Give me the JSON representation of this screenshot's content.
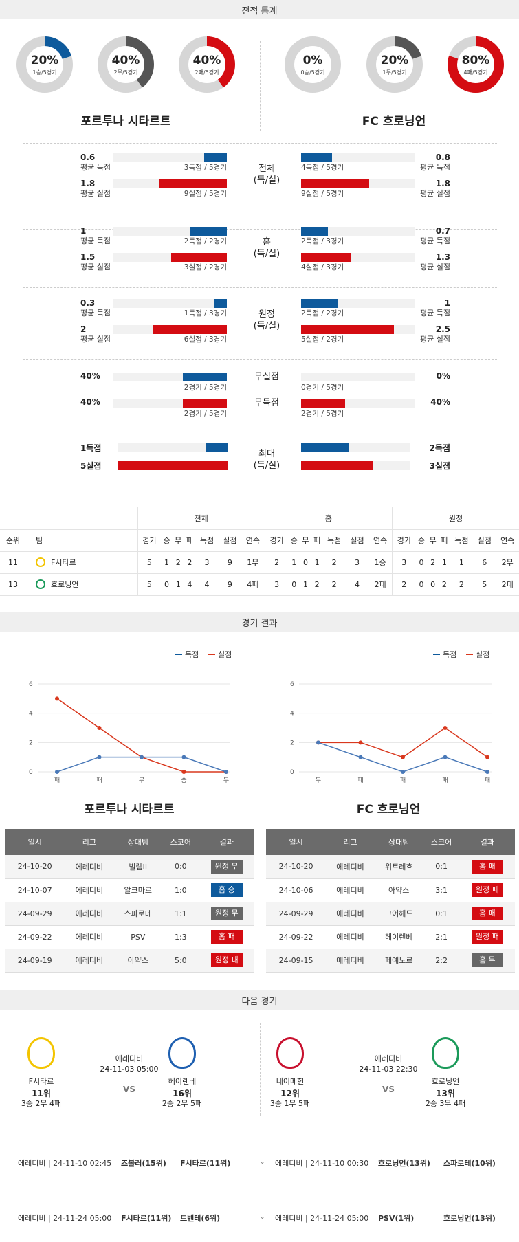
{
  "sections": {
    "stats": "전적 통계",
    "results": "경기 결과",
    "next": "다음 경기"
  },
  "teams": {
    "home": "포르투나 시타르트",
    "away": "FC 흐로닝언"
  },
  "donuts": [
    {
      "pct": "20%",
      "sub": "1승/5경기",
      "value": 0.2,
      "color": "#0e5a9c"
    },
    {
      "pct": "40%",
      "sub": "2무/5경기",
      "value": 0.4,
      "color": "#555555"
    },
    {
      "pct": "40%",
      "sub": "2패/5경기",
      "value": 0.4,
      "color": "#d40c12"
    },
    {
      "pct": "0%",
      "sub": "0승/5경기",
      "value": 0,
      "color": "#0e5a9c"
    },
    {
      "pct": "20%",
      "sub": "1무/5경기",
      "value": 0.2,
      "color": "#555555"
    },
    {
      "pct": "80%",
      "sub": "4패/5경기",
      "value": 0.8,
      "color": "#d40c12"
    }
  ],
  "compare": [
    {
      "center": [
        "전체",
        "(득/실)"
      ],
      "home": [
        {
          "val": "0.6",
          "label": "평균 득점",
          "cap": "3득점 / 5경기",
          "frac": 0.11,
          "color": "blue"
        },
        {
          "val": "1.8",
          "label": "평균 실점",
          "cap": "9실점 / 5경기",
          "frac": 0.33,
          "color": "red"
        }
      ],
      "away": [
        {
          "val": "0.8",
          "label": "평균 득점",
          "cap": "4득점 / 5경기",
          "frac": 0.15,
          "color": "blue"
        },
        {
          "val": "1.8",
          "label": "평균 실점",
          "cap": "9실점 / 5경기",
          "frac": 0.33,
          "color": "red"
        }
      ]
    },
    {
      "center": [
        "홈",
        "(득/실)"
      ],
      "home": [
        {
          "val": "1",
          "label": "평균 득점",
          "cap": "2득점 / 2경기",
          "frac": 0.18,
          "color": "blue"
        },
        {
          "val": "1.5",
          "label": "평균 실점",
          "cap": "3실점 / 2경기",
          "frac": 0.27,
          "color": "red"
        }
      ],
      "away": [
        {
          "val": "0.7",
          "label": "평균 득점",
          "cap": "2득점 / 3경기",
          "frac": 0.13,
          "color": "blue"
        },
        {
          "val": "1.3",
          "label": "평균 실점",
          "cap": "4실점 / 3경기",
          "frac": 0.24,
          "color": "red"
        }
      ]
    },
    {
      "center": [
        "원정",
        "(득/실)"
      ],
      "home": [
        {
          "val": "0.3",
          "label": "평균 득점",
          "cap": "1득점 / 3경기",
          "frac": 0.06,
          "color": "blue"
        },
        {
          "val": "2",
          "label": "평균 실점",
          "cap": "6실점 / 3경기",
          "frac": 0.36,
          "color": "red"
        }
      ],
      "away": [
        {
          "val": "1",
          "label": "평균 득점",
          "cap": "2득점 / 2경기",
          "frac": 0.18,
          "color": "blue"
        },
        {
          "val": "2.5",
          "label": "평균 실점",
          "cap": "5실점 / 2경기",
          "frac": 0.45,
          "color": "red"
        }
      ]
    }
  ],
  "cleanSheet": {
    "labels": [
      "무실점",
      "무득점"
    ],
    "home": [
      {
        "val": "40%",
        "cap": "2경기 / 5경기",
        "frac": 0.4,
        "color": "blue"
      },
      {
        "val": "40%",
        "cap": "2경기 / 5경기",
        "frac": 0.4,
        "color": "red"
      }
    ],
    "away": [
      {
        "val": "0%",
        "cap": "0경기 / 5경기",
        "frac": 0,
        "color": "blue"
      },
      {
        "val": "40%",
        "cap": "2경기 / 5경기",
        "frac": 0.4,
        "color": "red"
      }
    ]
  },
  "maxScore": {
    "center": [
      "최대",
      "(득/실)"
    ],
    "home": [
      {
        "val": "1득점",
        "frac": 0.2,
        "color": "blue"
      },
      {
        "val": "5실점",
        "frac": 1,
        "color": "red"
      }
    ],
    "away": [
      {
        "val": "2득점",
        "frac": 0.4,
        "color": "blue"
      },
      {
        "val": "3실점",
        "frac": 0.6,
        "color": "red"
      }
    ]
  },
  "standings": {
    "groups": [
      "전체",
      "홈",
      "원정"
    ],
    "cols": [
      "순위",
      "팀",
      "경기",
      "승",
      "무",
      "패",
      "득점",
      "실점",
      "연속"
    ],
    "rows": [
      {
        "rank": "11",
        "team": "F시타르",
        "logo": "#f3c400",
        "cells": [
          "5",
          "1",
          "2",
          "2",
          "3",
          "9",
          "1무",
          "2",
          "1",
          "0",
          "1",
          "2",
          "3",
          "1승",
          "3",
          "0",
          "2",
          "1",
          "1",
          "6",
          "2무"
        ]
      },
      {
        "rank": "13",
        "team": "흐로닝언",
        "logo": "#1b9a5a",
        "cells": [
          "5",
          "0",
          "1",
          "4",
          "4",
          "9",
          "4패",
          "3",
          "0",
          "1",
          "2",
          "2",
          "4",
          "2패",
          "2",
          "0",
          "0",
          "2",
          "2",
          "5",
          "2패"
        ]
      }
    ]
  },
  "charts": {
    "legend": {
      "scored": "득점",
      "conceded": "실점"
    },
    "yticks": [
      "0",
      "2",
      "4",
      "6"
    ],
    "home": {
      "x": [
        "패",
        "패",
        "무",
        "승",
        "무"
      ],
      "scored": [
        0,
        1,
        1,
        1,
        0
      ],
      "conceded": [
        5,
        3,
        1,
        0,
        0
      ]
    },
    "away": {
      "x": [
        "무",
        "패",
        "패",
        "패",
        "패"
      ],
      "scored": [
        2,
        1,
        0,
        1,
        0
      ],
      "conceded": [
        2,
        2,
        1,
        3,
        1
      ]
    }
  },
  "resultsTable": {
    "headers": [
      "일시",
      "리그",
      "상대팀",
      "스코어",
      "결과"
    ],
    "home": [
      {
        "date": "24-10-20",
        "league": "에레디비",
        "opp": "빌렘II",
        "score": "0:0",
        "res": "원정 무",
        "c": "gray"
      },
      {
        "date": "24-10-07",
        "league": "에레디비",
        "opp": "알크마르",
        "score": "1:0",
        "res": "홈 승",
        "c": "blue"
      },
      {
        "date": "24-09-29",
        "league": "에레디비",
        "opp": "스파로테",
        "score": "1:1",
        "res": "원정 무",
        "c": "gray"
      },
      {
        "date": "24-09-22",
        "league": "에레디비",
        "opp": "PSV",
        "score": "1:3",
        "res": "홈 패",
        "c": "red"
      },
      {
        "date": "24-09-19",
        "league": "에레디비",
        "opp": "아약스",
        "score": "5:0",
        "res": "원정 패",
        "c": "red"
      }
    ],
    "away": [
      {
        "date": "24-10-20",
        "league": "에레디비",
        "opp": "위트레흐",
        "score": "0:1",
        "res": "홈 패",
        "c": "red"
      },
      {
        "date": "24-10-06",
        "league": "에레디비",
        "opp": "아약스",
        "score": "3:1",
        "res": "원정 패",
        "c": "red"
      },
      {
        "date": "24-09-29",
        "league": "에레디비",
        "opp": "고어헤드",
        "score": "0:1",
        "res": "홈 패",
        "c": "red"
      },
      {
        "date": "24-09-22",
        "league": "에레디비",
        "opp": "헤이렌베",
        "score": "2:1",
        "res": "원정 패",
        "c": "red"
      },
      {
        "date": "24-09-15",
        "league": "에레디비",
        "opp": "페예노르",
        "score": "2:2",
        "res": "홈 무",
        "c": "gray"
      }
    ]
  },
  "next": {
    "left": {
      "league": "에레디비",
      "time": "24-11-03 05:00",
      "vs": "VS",
      "t1": {
        "name": "F시타르",
        "rank": "11위",
        "rec": "3승 2무 4패",
        "color": "#f3c400"
      },
      "t2": {
        "name": "헤이렌베",
        "rank": "16위",
        "rec": "2승 2무 5패",
        "color": "#1e5fb0"
      }
    },
    "right": {
      "league": "에레디비",
      "time": "24-11-03 22:30",
      "vs": "VS",
      "t1": {
        "name": "네이메헌",
        "rank": "12위",
        "rec": "3승 1무 5패",
        "color": "#c8102e"
      },
      "t2": {
        "name": "흐로닝언",
        "rank": "13위",
        "rec": "2승 3무 4패",
        "color": "#1b9a5a"
      }
    }
  },
  "future": [
    {
      "left": {
        "meta": "에레디비 | 24-11-10 02:45",
        "a": "즈볼러(15위)",
        "b": "F시타르(11위)"
      },
      "right": {
        "meta": "에레디비 | 24-11-10 00:30",
        "a": "흐로닝언(13위)",
        "b": "스파로테(10위)"
      }
    },
    {
      "left": {
        "meta": "에레디비 | 24-11-24 05:00",
        "a": "F시타르(11위)",
        "b": "트벤테(6위)"
      },
      "right": {
        "meta": "에레디비 | 24-11-24 05:00",
        "a": "PSV(1위)",
        "b": "흐로닝언(13위)"
      }
    }
  ]
}
